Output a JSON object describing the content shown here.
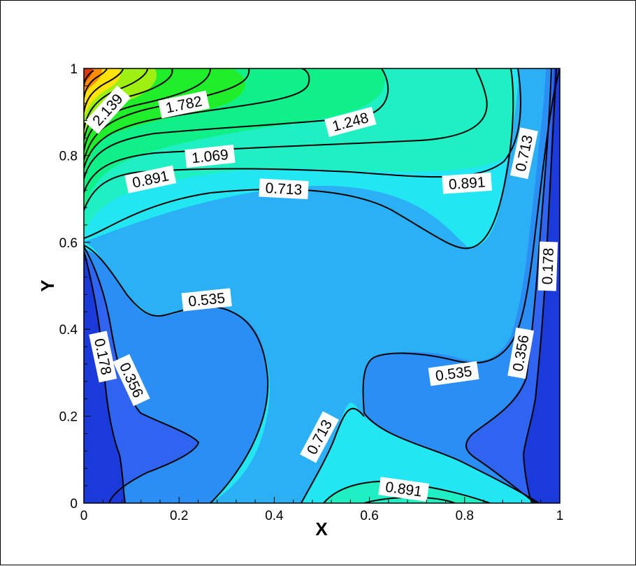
{
  "chart_data": {
    "type": "contour",
    "title": "",
    "xlabel": "X",
    "ylabel": "Y",
    "xlim": [
      0,
      1
    ],
    "ylim": [
      0,
      1
    ],
    "x_ticks": [
      "0",
      "0.2",
      "0.4",
      "0.6",
      "0.8",
      "1"
    ],
    "y_ticks": [
      "0",
      "0.2",
      "0.4",
      "0.6",
      "0.8",
      "1"
    ],
    "grid": false,
    "legend": "none",
    "colormap": [
      "#1a3ad9",
      "#2f64f0",
      "#2a8ef5",
      "#2cb0f5",
      "#22e6f2",
      "#1ff0c4",
      "#10f088",
      "#21ee2a",
      "#9ef013",
      "#ffe30a",
      "#ff8c05",
      "#d83a10"
    ],
    "contour_levels": [
      0.178,
      0.356,
      0.535,
      0.713,
      0.891,
      1.069,
      1.248,
      1.426,
      1.604,
      1.782,
      1.961,
      2.139,
      2.317,
      2.496
    ],
    "contour_labels": [
      {
        "text": "2.139",
        "x": 0.05,
        "y": 0.905,
        "angle": -48
      },
      {
        "text": "1.782",
        "x": 0.21,
        "y": 0.917,
        "angle": -12
      },
      {
        "text": "1.248",
        "x": 0.56,
        "y": 0.877,
        "angle": -15
      },
      {
        "text": "1.069",
        "x": 0.265,
        "y": 0.798,
        "angle": -6
      },
      {
        "text": "0.891",
        "x": 0.14,
        "y": 0.745,
        "angle": -12
      },
      {
        "text": "0.713",
        "x": 0.42,
        "y": 0.723,
        "angle": 3
      },
      {
        "text": "0.891",
        "x": 0.805,
        "y": 0.736,
        "angle": -4
      },
      {
        "text": "0.713",
        "x": 0.925,
        "y": 0.805,
        "angle": -78
      },
      {
        "text": "0.178",
        "x": 0.975,
        "y": 0.545,
        "angle": -88
      },
      {
        "text": "0.535",
        "x": 0.258,
        "y": 0.468,
        "angle": -6
      },
      {
        "text": "0.178",
        "x": 0.04,
        "y": 0.337,
        "angle": 78
      },
      {
        "text": "0.356",
        "x": 0.1,
        "y": 0.283,
        "angle": 65
      },
      {
        "text": "0.535",
        "x": 0.777,
        "y": 0.298,
        "angle": -8
      },
      {
        "text": "0.356",
        "x": 0.918,
        "y": 0.345,
        "angle": -80
      },
      {
        "text": "0.713",
        "x": 0.495,
        "y": 0.152,
        "angle": -62
      },
      {
        "text": "0.891",
        "x": 0.672,
        "y": 0.032,
        "angle": 8
      }
    ]
  }
}
